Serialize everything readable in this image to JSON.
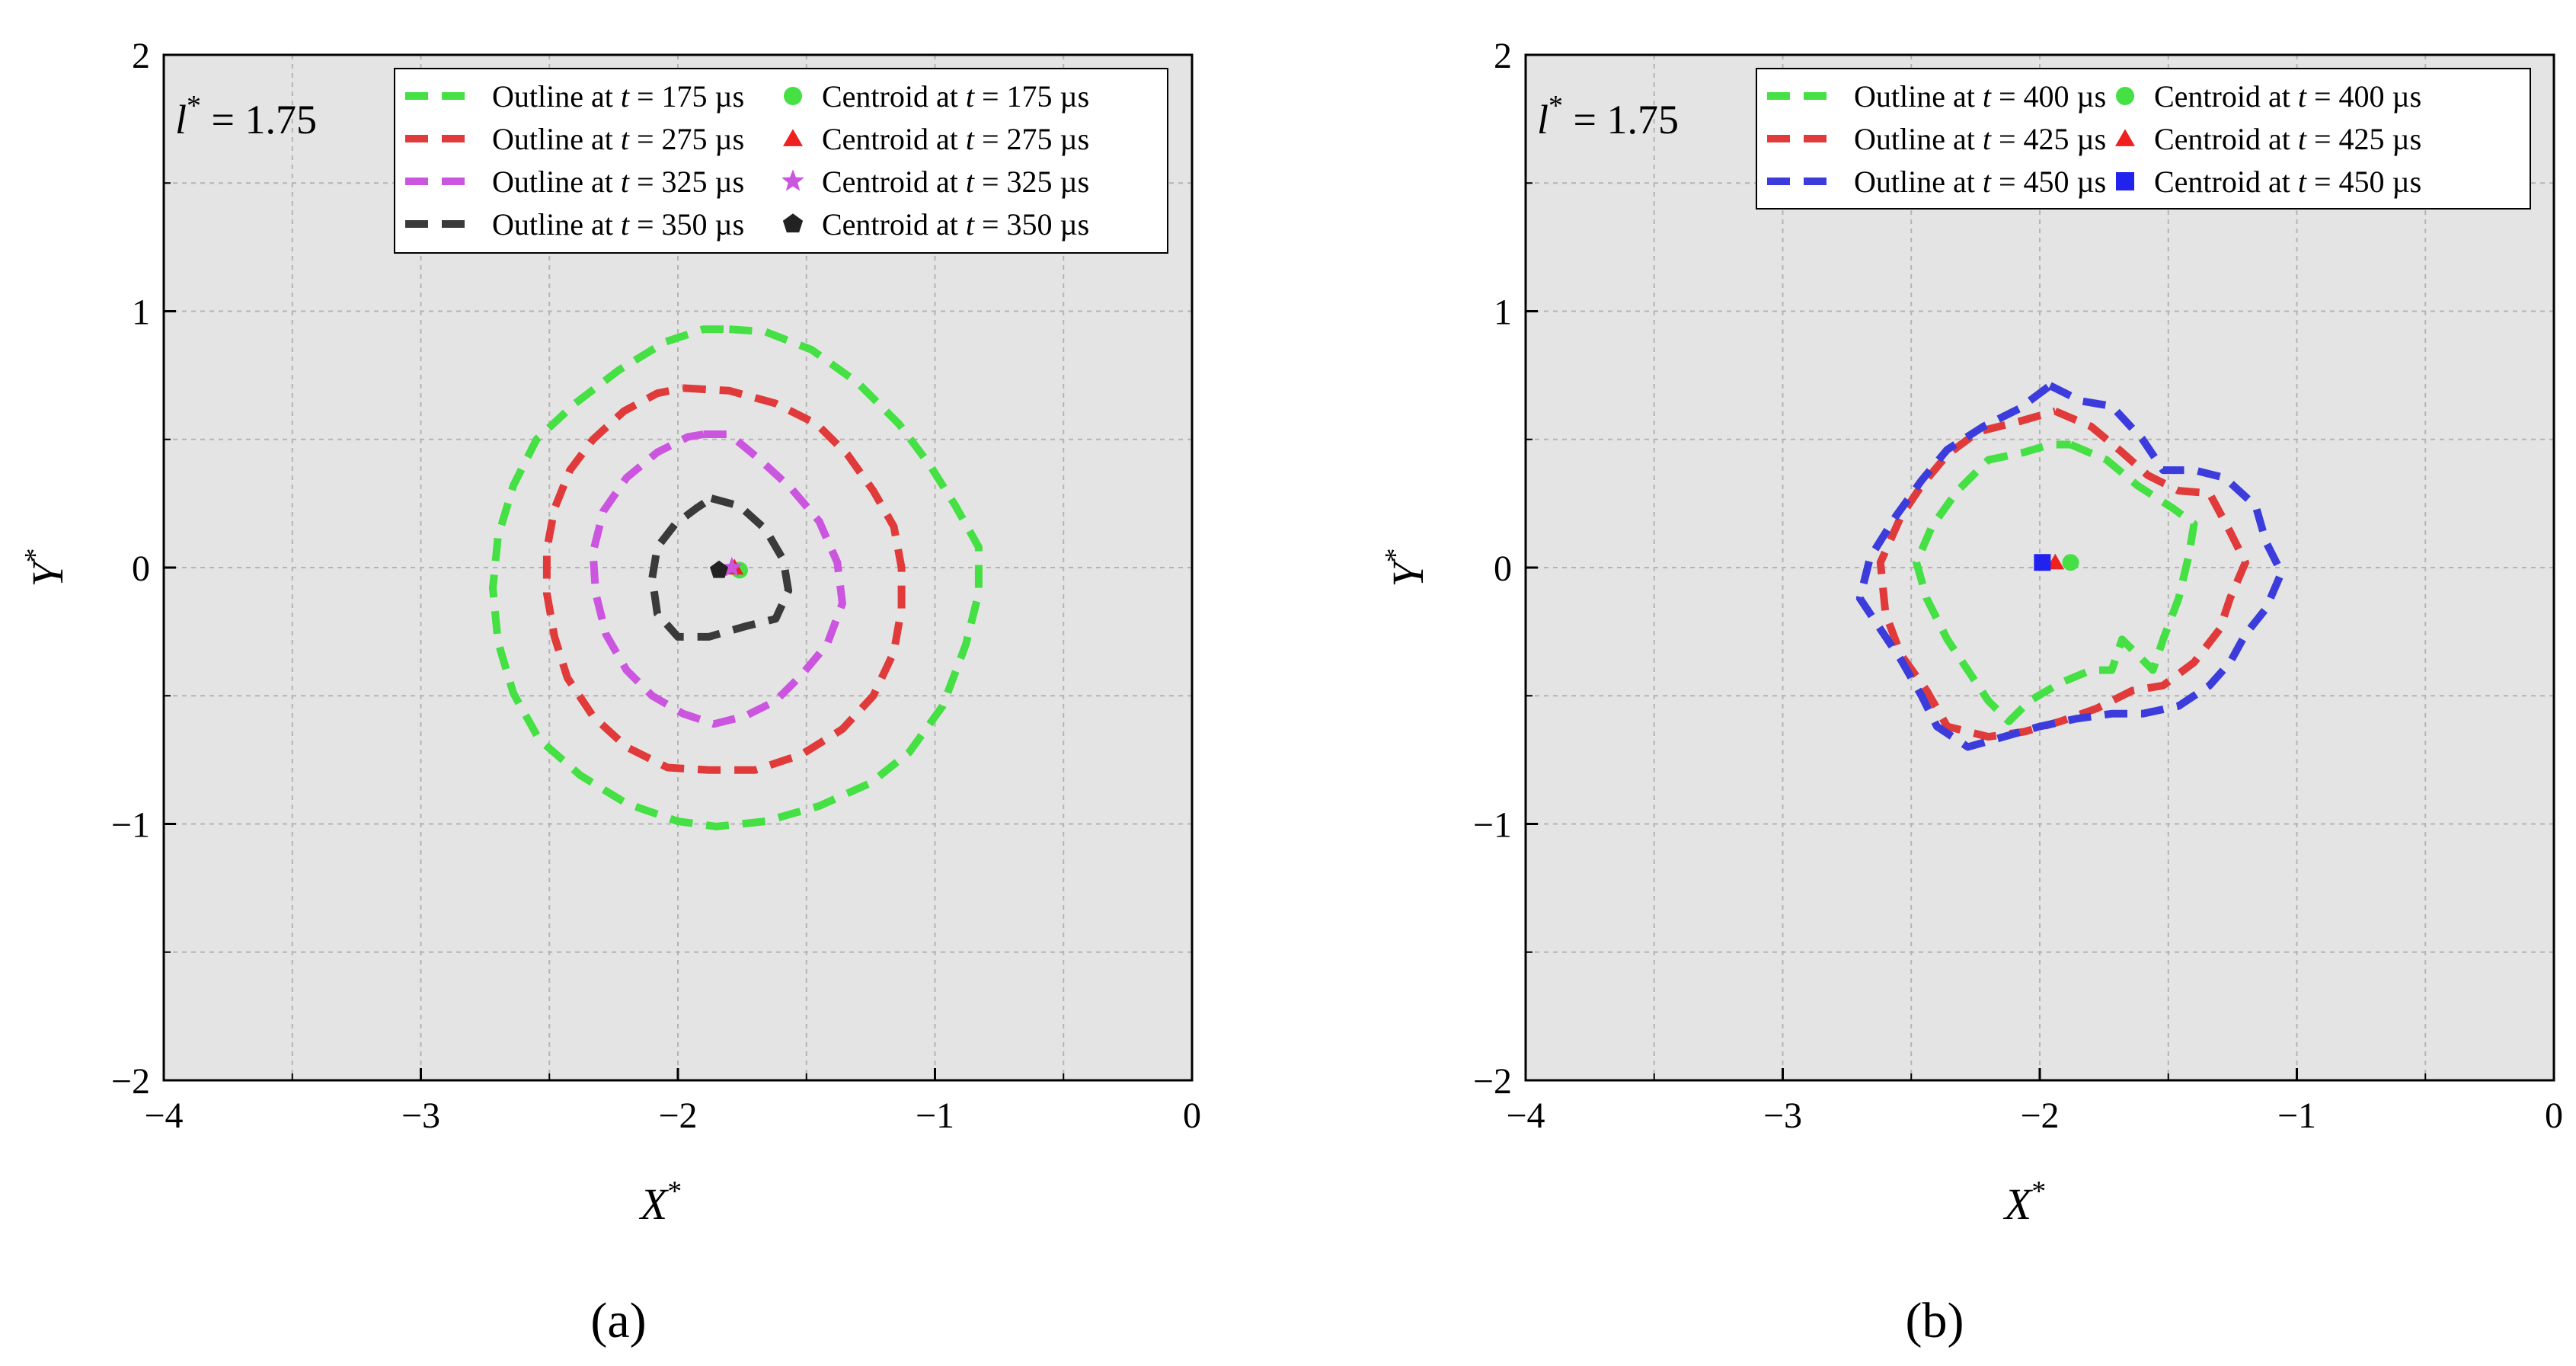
{
  "figure": {
    "background": "#ffffff",
    "plot_background": "#e4e4e4"
  },
  "chart_data": [
    {
      "panel": "(a)",
      "panel_letter": "a",
      "type": "line",
      "annotation": {
        "symbol": "l",
        "sup": "*",
        "value": " = 1.75"
      },
      "xlabel": "X",
      "xlabel_sup": "*",
      "ylabel": "Y",
      "ylabel_sup": "*",
      "xlim": [
        -4,
        0
      ],
      "ylim": [
        -2,
        2
      ],
      "xticks": [
        -4,
        -3,
        -2,
        -1,
        0
      ],
      "yticks": [
        -2,
        -1,
        0,
        1,
        2
      ],
      "xtick_labels": [
        "−4",
        "−3",
        "−2",
        "−1",
        "0"
      ],
      "ytick_labels": [
        "−2",
        "−1",
        "0",
        "1",
        "2"
      ],
      "grid": true,
      "legend_position": "top-right",
      "series": [
        {
          "name_prefix": "Outline at ",
          "time_var": "t",
          "name_suffix": " = 175 µs",
          "color": "#44e044",
          "points": [
            [
              -1.8,
              0.93
            ],
            [
              -1.66,
              0.92
            ],
            [
              -1.48,
              0.85
            ],
            [
              -1.3,
              0.72
            ],
            [
              -1.14,
              0.56
            ],
            [
              -1.02,
              0.4
            ],
            [
              -0.92,
              0.24
            ],
            [
              -0.83,
              0.08
            ],
            [
              -0.83,
              -0.1
            ],
            [
              -0.88,
              -0.3
            ],
            [
              -0.97,
              -0.54
            ],
            [
              -1.1,
              -0.72
            ],
            [
              -1.25,
              -0.84
            ],
            [
              -1.45,
              -0.93
            ],
            [
              -1.66,
              -0.99
            ],
            [
              -1.85,
              -1.01
            ],
            [
              -2.0,
              -0.99
            ],
            [
              -2.2,
              -0.92
            ],
            [
              -2.38,
              -0.81
            ],
            [
              -2.54,
              -0.67
            ],
            [
              -2.64,
              -0.49
            ],
            [
              -2.7,
              -0.29
            ],
            [
              -2.72,
              -0.08
            ],
            [
              -2.7,
              0.12
            ],
            [
              -2.64,
              0.32
            ],
            [
              -2.55,
              0.5
            ],
            [
              -2.4,
              0.64
            ],
            [
              -2.23,
              0.77
            ],
            [
              -2.05,
              0.88
            ],
            [
              -1.9,
              0.93
            ],
            [
              -1.8,
              0.93
            ]
          ]
        },
        {
          "name_prefix": "Outline at ",
          "time_var": "t",
          "name_suffix": " = 275 µs",
          "color": "#e03a3a",
          "points": [
            [
              -1.98,
              0.7
            ],
            [
              -1.8,
              0.69
            ],
            [
              -1.62,
              0.64
            ],
            [
              -1.46,
              0.56
            ],
            [
              -1.34,
              0.44
            ],
            [
              -1.24,
              0.3
            ],
            [
              -1.16,
              0.16
            ],
            [
              -1.13,
              0.0
            ],
            [
              -1.13,
              -0.16
            ],
            [
              -1.16,
              -0.33
            ],
            [
              -1.24,
              -0.5
            ],
            [
              -1.36,
              -0.63
            ],
            [
              -1.52,
              -0.73
            ],
            [
              -1.7,
              -0.79
            ],
            [
              -1.88,
              -0.79
            ],
            [
              -2.04,
              -0.78
            ],
            [
              -2.2,
              -0.7
            ],
            [
              -2.33,
              -0.58
            ],
            [
              -2.43,
              -0.43
            ],
            [
              -2.48,
              -0.27
            ],
            [
              -2.51,
              -0.1
            ],
            [
              -2.51,
              0.07
            ],
            [
              -2.48,
              0.23
            ],
            [
              -2.42,
              0.38
            ],
            [
              -2.33,
              0.5
            ],
            [
              -2.21,
              0.61
            ],
            [
              -2.08,
              0.68
            ],
            [
              -1.98,
              0.7
            ]
          ]
        },
        {
          "name_prefix": "Outline at ",
          "time_var": "t",
          "name_suffix": " = 325 µs",
          "color": "#cc55e0",
          "points": [
            [
              -1.9,
              0.52
            ],
            [
              -1.8,
              0.52
            ],
            [
              -1.68,
              0.42
            ],
            [
              -1.56,
              0.31
            ],
            [
              -1.45,
              0.18
            ],
            [
              -1.38,
              0.02
            ],
            [
              -1.36,
              -0.14
            ],
            [
              -1.42,
              -0.3
            ],
            [
              -1.52,
              -0.42
            ],
            [
              -1.62,
              -0.52
            ],
            [
              -1.74,
              -0.58
            ],
            [
              -1.86,
              -0.61
            ],
            [
              -1.98,
              -0.57
            ],
            [
              -2.1,
              -0.5
            ],
            [
              -2.2,
              -0.4
            ],
            [
              -2.28,
              -0.26
            ],
            [
              -2.32,
              -0.1
            ],
            [
              -2.33,
              0.06
            ],
            [
              -2.29,
              0.22
            ],
            [
              -2.2,
              0.35
            ],
            [
              -2.08,
              0.45
            ],
            [
              -1.96,
              0.51
            ],
            [
              -1.9,
              0.52
            ]
          ]
        },
        {
          "name_prefix": "Outline at ",
          "time_var": "t",
          "name_suffix": " = 350 µs",
          "color": "#3a3a3a",
          "points": [
            [
              -1.87,
              0.27
            ],
            [
              -1.76,
              0.24
            ],
            [
              -1.66,
              0.15
            ],
            [
              -1.59,
              0.03
            ],
            [
              -1.57,
              -0.09
            ],
            [
              -1.62,
              -0.2
            ],
            [
              -1.74,
              -0.23
            ],
            [
              -1.88,
              -0.27
            ],
            [
              -2.0,
              -0.27
            ],
            [
              -2.08,
              -0.18
            ],
            [
              -2.1,
              -0.04
            ],
            [
              -2.08,
              0.08
            ],
            [
              -2.01,
              0.17
            ],
            [
              -1.93,
              0.23
            ],
            [
              -1.87,
              0.27
            ]
          ]
        }
      ],
      "centroids": [
        {
          "name_prefix": "Centroid at ",
          "time_var": "t",
          "name_suffix": " = 175 µs",
          "color": "#44e044",
          "marker": "circle",
          "x": -1.76,
          "y": -0.01
        },
        {
          "name_prefix": "Centroid at ",
          "time_var": "t",
          "name_suffix": " = 275 µs",
          "color": "#ee2020",
          "marker": "triangle",
          "x": -1.78,
          "y": 0.0
        },
        {
          "name_prefix": "Centroid at ",
          "time_var": "t",
          "name_suffix": " = 325 µs",
          "color": "#cc55e0",
          "marker": "star",
          "x": -1.79,
          "y": 0.0
        },
        {
          "name_prefix": "Centroid at ",
          "time_var": "t",
          "name_suffix": " = 350 µs",
          "color": "#222222",
          "marker": "pentagon",
          "x": -1.84,
          "y": -0.01
        }
      ]
    },
    {
      "panel": "(b)",
      "panel_letter": "b",
      "type": "line",
      "annotation": {
        "symbol": "l",
        "sup": "*",
        "value": " = 1.75"
      },
      "xlabel": "X",
      "xlabel_sup": "*",
      "ylabel": "Y",
      "ylabel_sup": "*",
      "xlim": [
        -4,
        0
      ],
      "ylim": [
        -2,
        2
      ],
      "xticks": [
        -4,
        -3,
        -2,
        -1,
        0
      ],
      "yticks": [
        -2,
        -1,
        0,
        1,
        2
      ],
      "xtick_labels": [
        "−4",
        "−3",
        "−2",
        "−1",
        "0"
      ],
      "ytick_labels": [
        "−2",
        "−1",
        "0",
        "1",
        "2"
      ],
      "grid": true,
      "legend_position": "top-right",
      "series": [
        {
          "name_prefix": "Outline at ",
          "time_var": "t",
          "name_suffix": " = 400 µs",
          "color": "#44e044",
          "points": [
            [
              -1.88,
              0.48
            ],
            [
              -1.74,
              0.42
            ],
            [
              -1.62,
              0.32
            ],
            [
              -1.48,
              0.23
            ],
            [
              -1.4,
              0.17
            ],
            [
              -1.42,
              0.05
            ],
            [
              -1.46,
              -0.12
            ],
            [
              -1.52,
              -0.28
            ],
            [
              -1.56,
              -0.4
            ],
            [
              -1.64,
              -0.32
            ],
            [
              -1.68,
              -0.28
            ],
            [
              -1.72,
              -0.4
            ],
            [
              -1.8,
              -0.4
            ],
            [
              -1.92,
              -0.45
            ],
            [
              -2.04,
              -0.52
            ],
            [
              -2.12,
              -0.6
            ],
            [
              -2.2,
              -0.52
            ],
            [
              -2.28,
              -0.4
            ],
            [
              -2.36,
              -0.28
            ],
            [
              -2.44,
              -0.12
            ],
            [
              -2.48,
              0.02
            ],
            [
              -2.42,
              0.16
            ],
            [
              -2.32,
              0.3
            ],
            [
              -2.2,
              0.42
            ],
            [
              -2.06,
              0.45
            ],
            [
              -1.96,
              0.48
            ],
            [
              -1.88,
              0.48
            ]
          ]
        },
        {
          "name_prefix": "Outline at ",
          "time_var": "t",
          "name_suffix": " = 425 µs",
          "color": "#e03a3a",
          "points": [
            [
              -1.94,
              0.61
            ],
            [
              -1.8,
              0.55
            ],
            [
              -1.68,
              0.45
            ],
            [
              -1.58,
              0.36
            ],
            [
              -1.46,
              0.3
            ],
            [
              -1.34,
              0.29
            ],
            [
              -1.26,
              0.14
            ],
            [
              -1.2,
              0.02
            ],
            [
              -1.26,
              -0.12
            ],
            [
              -1.3,
              -0.24
            ],
            [
              -1.4,
              -0.37
            ],
            [
              -1.52,
              -0.46
            ],
            [
              -1.64,
              -0.48
            ],
            [
              -1.78,
              -0.55
            ],
            [
              -1.92,
              -0.6
            ],
            [
              -2.06,
              -0.64
            ],
            [
              -2.2,
              -0.66
            ],
            [
              -2.36,
              -0.62
            ],
            [
              -2.44,
              -0.48
            ],
            [
              -2.54,
              -0.34
            ],
            [
              -2.6,
              -0.18
            ],
            [
              -2.62,
              0.02
            ],
            [
              -2.54,
              0.2
            ],
            [
              -2.46,
              0.32
            ],
            [
              -2.36,
              0.44
            ],
            [
              -2.24,
              0.53
            ],
            [
              -2.08,
              0.57
            ],
            [
              -1.94,
              0.61
            ]
          ]
        },
        {
          "name_prefix": "Outline at ",
          "time_var": "t",
          "name_suffix": " = 450 µs",
          "color": "#3c3cdd",
          "points": [
            [
              -1.96,
              0.71
            ],
            [
              -1.84,
              0.65
            ],
            [
              -1.72,
              0.63
            ],
            [
              -1.6,
              0.5
            ],
            [
              -1.52,
              0.38
            ],
            [
              -1.4,
              0.38
            ],
            [
              -1.28,
              0.35
            ],
            [
              -1.16,
              0.24
            ],
            [
              -1.12,
              0.1
            ],
            [
              -1.06,
              -0.02
            ],
            [
              -1.12,
              -0.16
            ],
            [
              -1.2,
              -0.26
            ],
            [
              -1.26,
              -0.37
            ],
            [
              -1.34,
              -0.46
            ],
            [
              -1.46,
              -0.54
            ],
            [
              -1.6,
              -0.57
            ],
            [
              -1.72,
              -0.57
            ],
            [
              -1.86,
              -0.59
            ],
            [
              -2.0,
              -0.62
            ],
            [
              -2.14,
              -0.66
            ],
            [
              -2.28,
              -0.7
            ],
            [
              -2.4,
              -0.62
            ],
            [
              -2.46,
              -0.5
            ],
            [
              -2.54,
              -0.36
            ],
            [
              -2.62,
              -0.24
            ],
            [
              -2.7,
              -0.12
            ],
            [
              -2.66,
              0.04
            ],
            [
              -2.56,
              0.2
            ],
            [
              -2.46,
              0.34
            ],
            [
              -2.36,
              0.46
            ],
            [
              -2.22,
              0.55
            ],
            [
              -2.08,
              0.62
            ],
            [
              -1.96,
              0.71
            ]
          ]
        }
      ],
      "centroids": [
        {
          "name_prefix": "Centroid at ",
          "time_var": "t",
          "name_suffix": " = 400 µs",
          "color": "#44e044",
          "marker": "circle",
          "x": -1.88,
          "y": 0.02
        },
        {
          "name_prefix": "Centroid at ",
          "time_var": "t",
          "name_suffix": " = 425 µs",
          "color": "#ee2020",
          "marker": "triangle",
          "x": -1.94,
          "y": 0.02
        },
        {
          "name_prefix": "Centroid at ",
          "time_var": "t",
          "name_suffix": " = 450 µs",
          "color": "#2222ee",
          "marker": "square",
          "x": -1.99,
          "y": 0.02
        }
      ]
    }
  ]
}
